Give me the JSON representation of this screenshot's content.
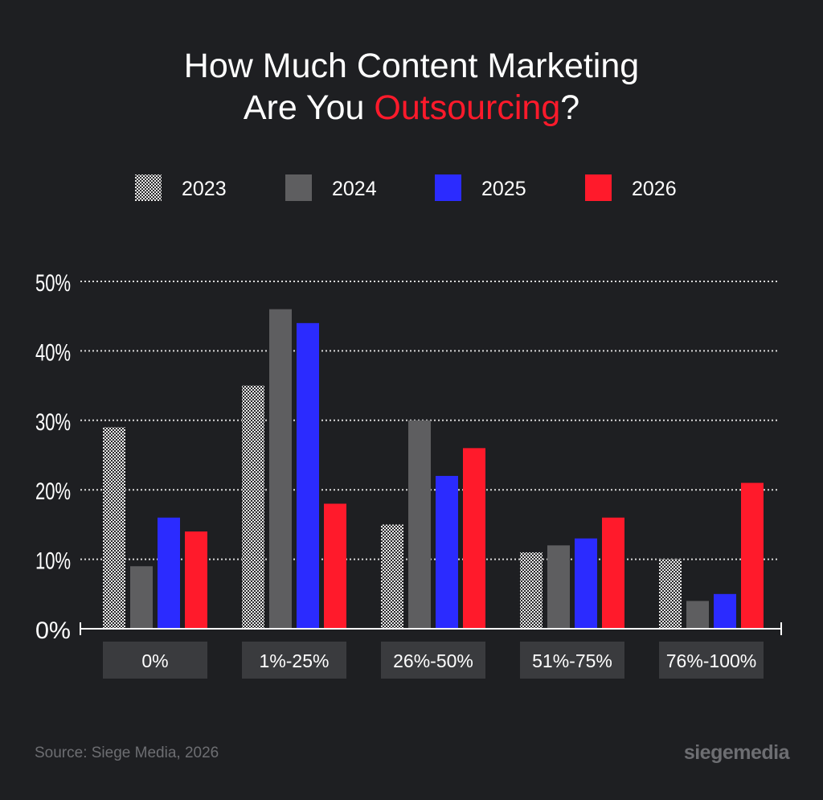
{
  "title": {
    "line1": "How Much Content Marketing",
    "line2_prefix": "Are You ",
    "line2_highlight": "Outsourcing",
    "line2_suffix": "?"
  },
  "colors": {
    "background": "#1e1f22",
    "highlight": "#ff1a2b",
    "series_2024": "#5e5e60",
    "series_2025": "#2b2bff",
    "series_2026": "#ff1a2b",
    "category_box": "#3a3b3e"
  },
  "chart_data": {
    "type": "bar",
    "categories": [
      "0%",
      "1%-25%",
      "26%-50%",
      "51%-75%",
      "76%-100%"
    ],
    "series": [
      {
        "name": "2023",
        "values": [
          29,
          35,
          15,
          11,
          10
        ],
        "pattern": "checker-white"
      },
      {
        "name": "2024",
        "values": [
          9,
          46,
          30,
          12,
          4
        ],
        "color": "#5e5e60"
      },
      {
        "name": "2025",
        "values": [
          16,
          44,
          22,
          13,
          5
        ],
        "color": "#2b2bff"
      },
      {
        "name": "2026",
        "values": [
          14,
          18,
          26,
          16,
          21
        ],
        "color": "#ff1a2b"
      }
    ],
    "yticks": [
      "0%",
      "10%",
      "20%",
      "30%",
      "40%",
      "50%"
    ],
    "ylim": [
      0,
      50
    ],
    "grid": true,
    "legend": "top-center"
  },
  "footer": {
    "source": "Source: Siege Media, 2026",
    "logo": "siegemedia"
  }
}
